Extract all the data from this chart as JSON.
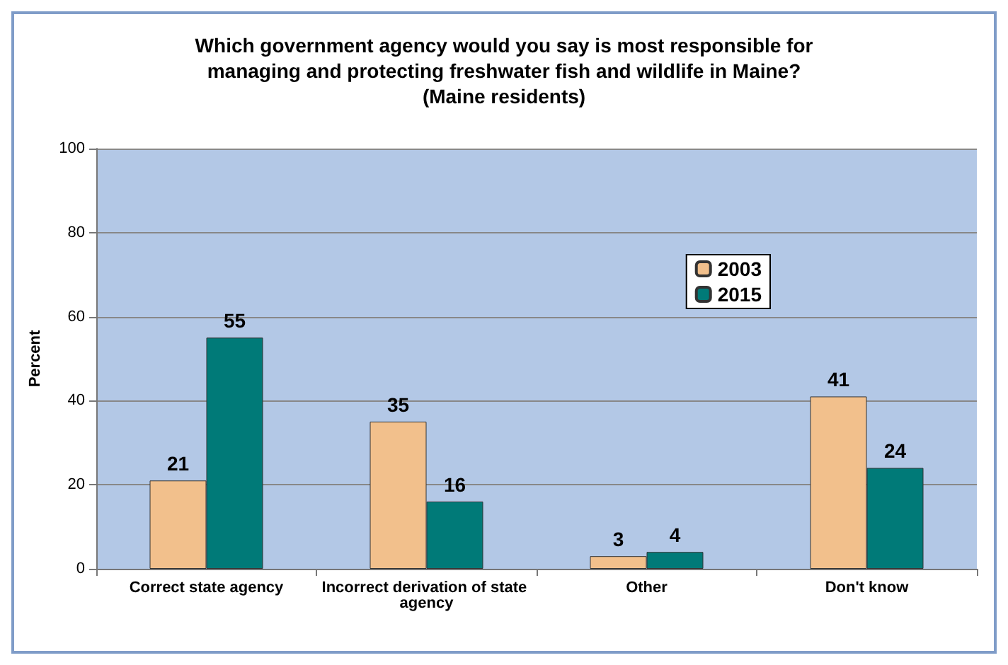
{
  "chart_data": {
    "type": "bar",
    "title": "Which government agency would you say is most responsible for\nmanaging and protecting freshwater fish and wildlife in Maine?\n(Maine residents)",
    "ylabel": "Percent",
    "categories": [
      "Correct state agency",
      "Incorrect derivation of state agency",
      "Other",
      "Don't know"
    ],
    "series": [
      {
        "name": "2003",
        "color": "#f2c08c",
        "values": [
          21,
          35,
          3,
          41
        ]
      },
      {
        "name": "2015",
        "color": "#007a78",
        "values": [
          55,
          16,
          4,
          24
        ]
      }
    ],
    "ylim": [
      0,
      100
    ],
    "yticks": [
      0,
      20,
      40,
      60,
      80,
      100
    ],
    "grid": "y",
    "legend": "top right",
    "data_labels": true
  }
}
